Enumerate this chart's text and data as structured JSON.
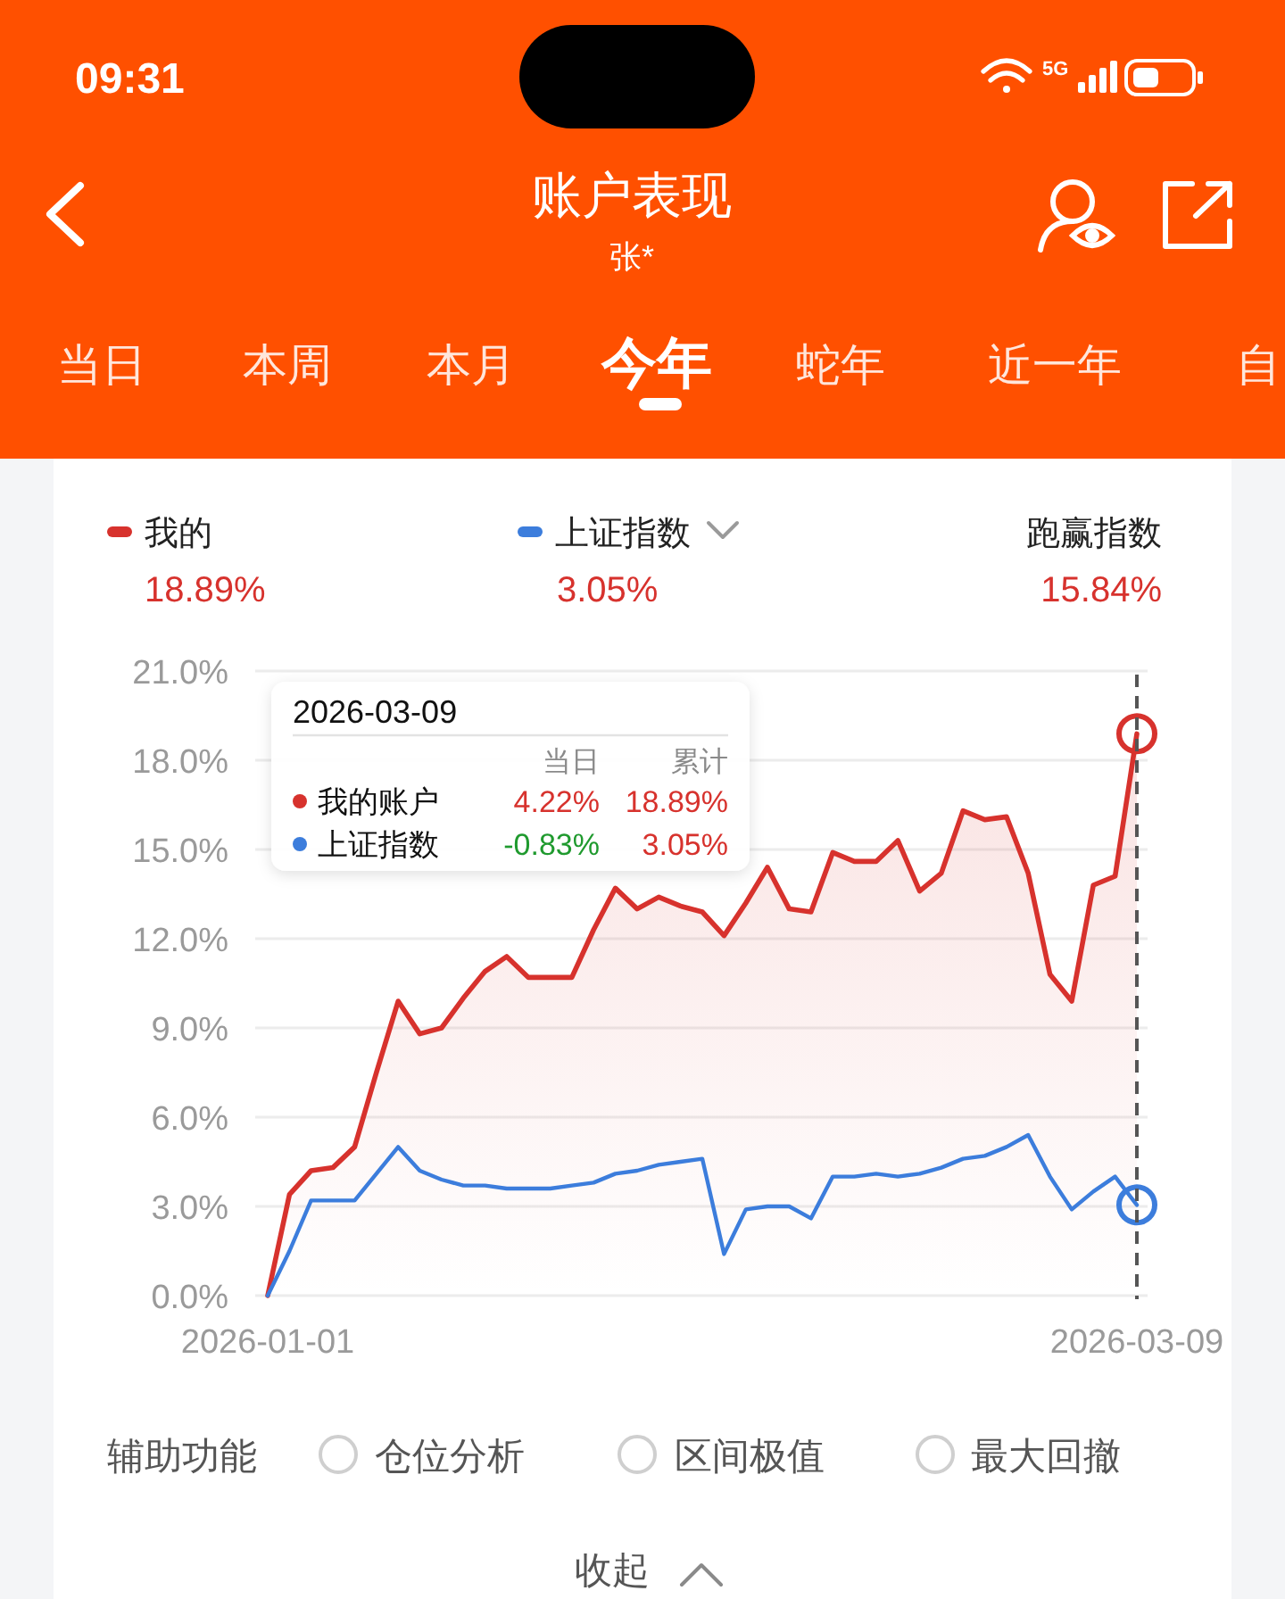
{
  "chart_data": {
    "type": "line",
    "title": "账户表现",
    "subtitle": "张*",
    "categories": [
      "2026-01-01",
      null,
      null,
      null,
      null,
      null,
      null,
      null,
      null,
      null,
      null,
      null,
      null,
      null,
      null,
      null,
      null,
      null,
      null,
      null,
      null,
      null,
      null,
      null,
      null,
      null,
      null,
      null,
      null,
      null,
      null,
      null,
      null,
      null,
      null,
      null,
      null,
      null,
      null,
      null,
      "2026-03-09"
    ],
    "series": [
      {
        "name": "我的",
        "type": "area",
        "color": "#d7322d",
        "values": [
          0,
          3.4,
          4.2,
          4.3,
          5.0,
          7.5,
          9.9,
          8.8,
          9.0,
          10.0,
          10.9,
          11.4,
          10.7,
          10.7,
          10.7,
          12.3,
          13.7,
          13.0,
          13.4,
          13.1,
          12.9,
          12.1,
          13.2,
          14.4,
          13.0,
          12.9,
          14.9,
          14.6,
          14.6,
          15.3,
          13.6,
          14.2,
          16.3,
          16.0,
          16.1,
          14.2,
          10.8,
          9.9,
          13.8,
          14.1,
          18.89
        ]
      },
      {
        "name": "上证指数",
        "color": "#3c7ddc",
        "values": [
          0,
          1.5,
          3.2,
          3.2,
          3.2,
          4.1,
          5.0,
          4.2,
          3.9,
          3.7,
          3.7,
          3.6,
          3.6,
          3.6,
          3.7,
          3.8,
          4.1,
          4.2,
          4.4,
          4.5,
          4.6,
          1.4,
          2.9,
          3.0,
          3.0,
          2.6,
          4.0,
          4.0,
          4.1,
          4.0,
          4.1,
          4.3,
          4.6,
          4.7,
          5.0,
          5.4,
          4.0,
          2.9,
          3.5,
          4.0,
          3.05
        ]
      },
      {
        "type": "scatter",
        "color": "#d7322d",
        "marker": "circle",
        "values": [
          null,
          null,
          null,
          null,
          null,
          null,
          null,
          null,
          null,
          null,
          null,
          null,
          null,
          null,
          null,
          null,
          null,
          null,
          null,
          null,
          null,
          null,
          null,
          null,
          null,
          null,
          null,
          null,
          null,
          null,
          null,
          null,
          null,
          null,
          null,
          null,
          null,
          null,
          null,
          null,
          18.89
        ]
      },
      {
        "type": "scatter",
        "color": "#3c7ddc",
        "marker": "circle",
        "values": [
          null,
          null,
          null,
          null,
          null,
          null,
          null,
          null,
          null,
          null,
          null,
          null,
          null,
          null,
          null,
          null,
          null,
          null,
          null,
          null,
          null,
          null,
          null,
          null,
          null,
          null,
          null,
          null,
          null,
          null,
          null,
          null,
          null,
          null,
          null,
          null,
          null,
          null,
          null,
          null,
          3.05
        ]
      }
    ],
    "ylim": [
      0,
      21
    ],
    "yticks": [
      {
        "value": 0,
        "label": "0.0%"
      },
      {
        "value": 3,
        "label": "3.0%"
      },
      {
        "value": 6,
        "label": "6.0%"
      },
      {
        "value": 9,
        "label": "9.0%"
      },
      {
        "value": 12,
        "label": "12.0%"
      },
      {
        "value": 15,
        "label": "15.0%"
      },
      {
        "value": 18,
        "label": "18.0%"
      },
      {
        "value": 21,
        "label": "21.0%"
      }
    ],
    "grid": "y",
    "legend": "top",
    "ref_lines": [
      {
        "axis": "x",
        "value": "2026-03-09",
        "color": "#555555",
        "line_style": "dashed"
      }
    ],
    "annotations": [
      "09:31",
      "5G",
      "当日",
      "本周",
      "本月",
      "今年",
      "蛇年",
      "近一年",
      "自",
      "18.89%",
      "3.05%",
      "跑赢指数",
      "15.84%",
      "2026-03-09",
      "当日",
      "累计",
      "我的账户",
      "4.22%",
      "18.89%",
      "上证指数",
      "-0.83%",
      "3.05%",
      "辅助功能",
      "仓位分析",
      "区间极值",
      "最大回撤",
      "收起"
    ]
  }
}
